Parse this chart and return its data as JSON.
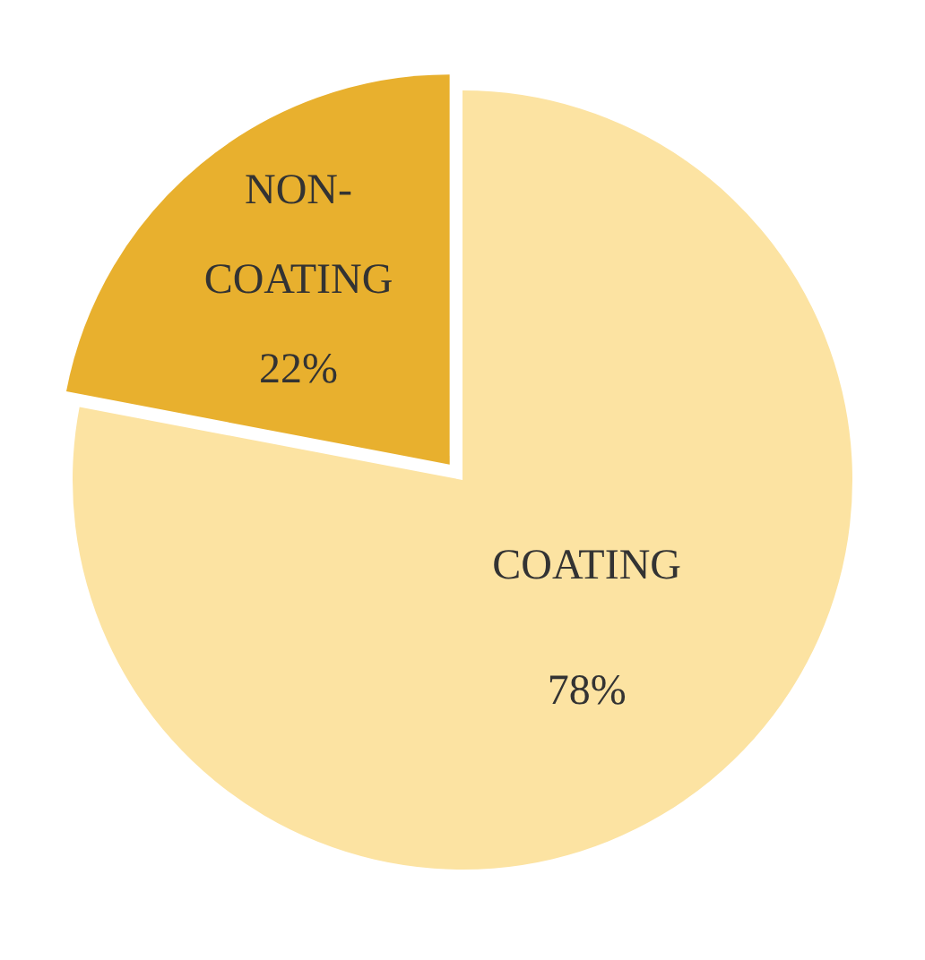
{
  "chart_data": {
    "type": "pie",
    "categories": [
      "COATING",
      "NON-COATING"
    ],
    "values": [
      78,
      22
    ],
    "colors": [
      "#fce3a2",
      "#e8b02e"
    ],
    "value_labels": [
      "78%",
      "22%"
    ],
    "legend": false
  }
}
